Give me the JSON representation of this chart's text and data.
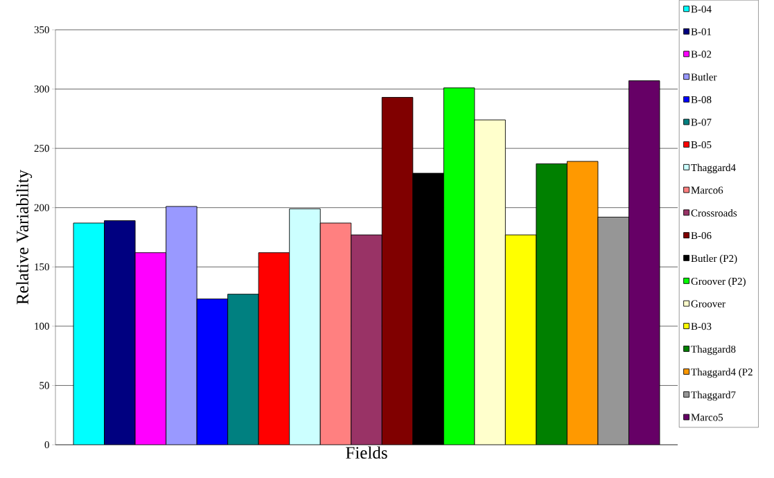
{
  "chart_data": {
    "type": "bar",
    "xlabel": "Fields",
    "ylabel": "Relative Variability",
    "categories": [
      null
    ],
    "series": [
      {
        "name": "B-04",
        "color": "#00ffff",
        "values": [
          187
        ]
      },
      {
        "name": "B-01",
        "color": "#000080",
        "values": [
          189
        ]
      },
      {
        "name": "B-02",
        "color": "#ff00ff",
        "values": [
          162
        ]
      },
      {
        "name": "Butler",
        "color": "#9999ff",
        "values": [
          201
        ]
      },
      {
        "name": "B-08",
        "color": "#0000ff",
        "values": [
          123
        ]
      },
      {
        "name": "B-07",
        "color": "#008080",
        "values": [
          127
        ]
      },
      {
        "name": "B-05",
        "color": "#ff0000",
        "values": [
          162
        ]
      },
      {
        "name": "Thaggard4",
        "color": "#ccffff",
        "values": [
          199
        ]
      },
      {
        "name": "Marco6",
        "color": "#ff8080",
        "values": [
          187
        ]
      },
      {
        "name": "Crossroads",
        "color": "#993366",
        "values": [
          177
        ]
      },
      {
        "name": "B-06",
        "color": "#800000",
        "values": [
          293
        ]
      },
      {
        "name": "Butler (P2)",
        "color": "#000000",
        "values": [
          229
        ]
      },
      {
        "name": "Groover (P2)",
        "color": "#00ff00",
        "values": [
          301
        ]
      },
      {
        "name": "Groover",
        "color": "#ffffcc",
        "values": [
          274
        ]
      },
      {
        "name": "B-03",
        "color": "#ffff00",
        "values": [
          177
        ]
      },
      {
        "name": "Thaggard8",
        "color": "#008000",
        "values": [
          237
        ]
      },
      {
        "name": "Thaggard4 (P2",
        "color": "#ff9900",
        "values": [
          239
        ]
      },
      {
        "name": "Thaggard7",
        "color": "#969696",
        "values": [
          192
        ]
      },
      {
        "name": "Marco5",
        "color": "#660066",
        "values": [
          307
        ]
      }
    ],
    "ylim": [
      0,
      350
    ],
    "yticks": [
      0,
      50,
      100,
      150,
      200,
      250,
      300,
      350
    ],
    "grid": "y",
    "legend": "right"
  }
}
